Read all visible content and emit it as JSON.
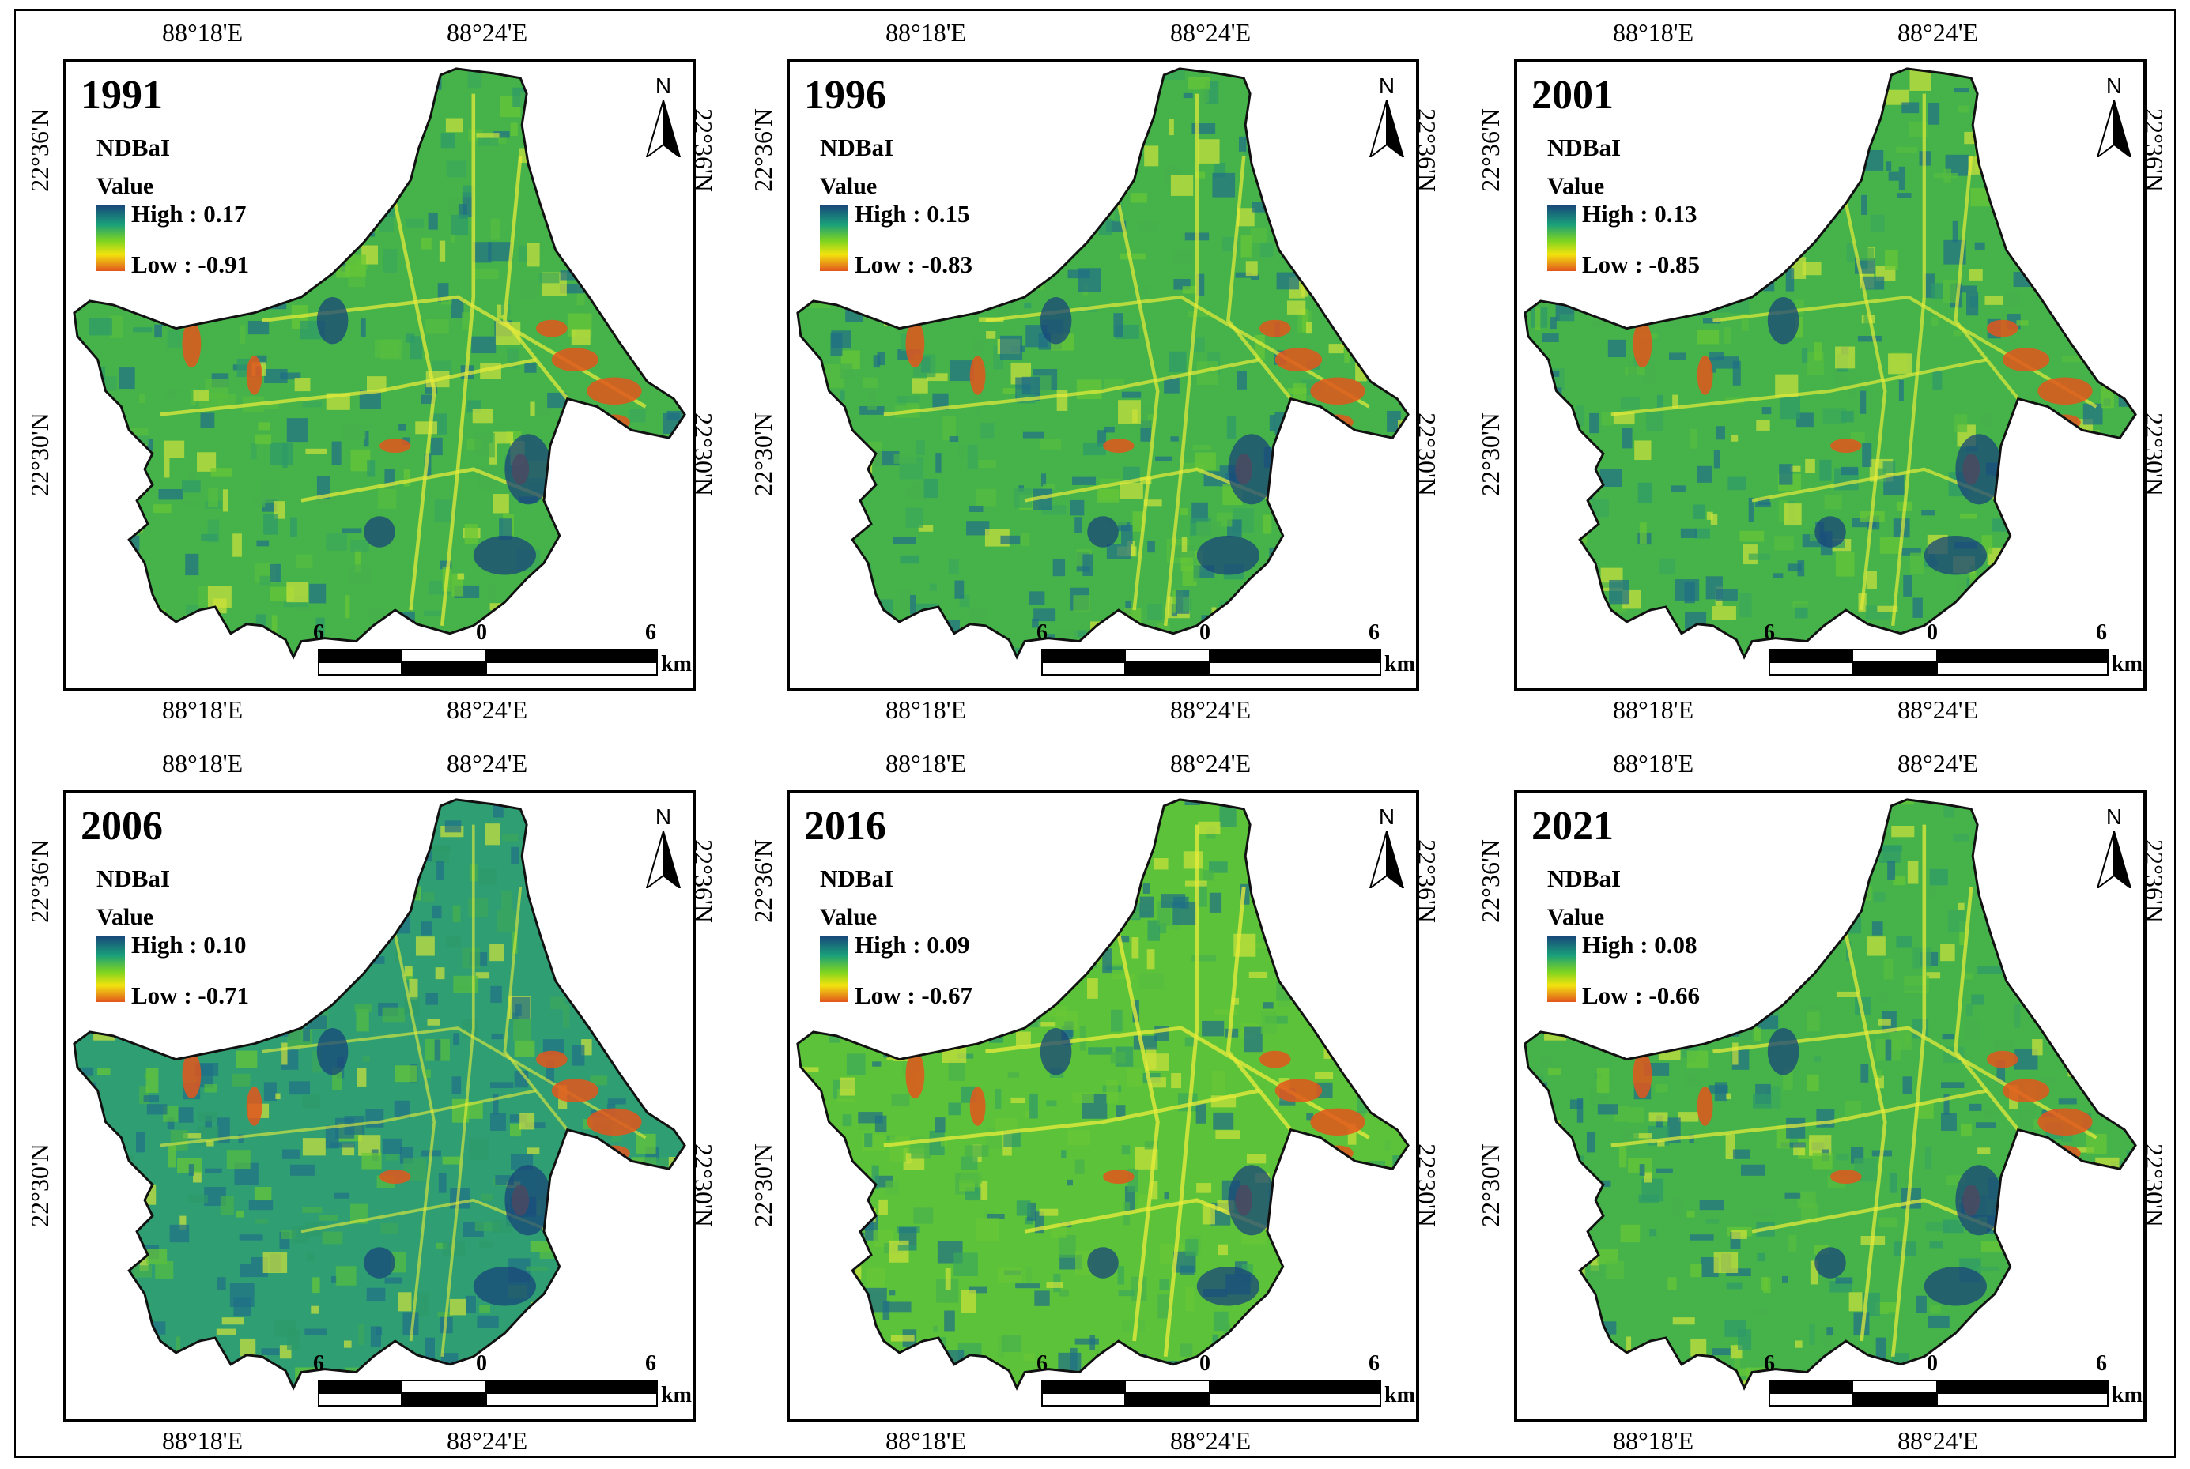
{
  "colors": {
    "high": "#18457a",
    "mid_high": "#1aa07a",
    "mid": "#7fd420",
    "mid_low": "#f2e30f",
    "low": "#e2561c",
    "base_green": "#45b34a"
  },
  "panels": [
    {
      "year": "1991",
      "legend_title": "NDBaI",
      "value_label": "Value",
      "high": "High : 0.17",
      "low": "Low : -0.91",
      "tone": 0.55
    },
    {
      "year": "1996",
      "legend_title": "NDBaI",
      "value_label": "Value",
      "high": "High : 0.15",
      "low": "Low : -0.83",
      "tone": 0.5
    },
    {
      "year": "2001",
      "legend_title": "NDBaI",
      "value_label": "Value",
      "high": "High : 0.13",
      "low": "Low : -0.85",
      "tone": 0.45
    },
    {
      "year": "2006",
      "legend_title": "NDBaI",
      "value_label": "Value",
      "high": "High : 0.10",
      "low": "Low : -0.71",
      "tone": 0.25
    },
    {
      "year": "2016",
      "legend_title": "NDBaI",
      "value_label": "Value",
      "high": "High : 0.09",
      "low": "Low : -0.67",
      "tone": 0.65
    },
    {
      "year": "2021",
      "legend_title": "NDBaI",
      "value_label": "Value",
      "high": "High : 0.08",
      "low": "Low : -0.66",
      "tone": 0.55
    }
  ],
  "common": {
    "north_label": "N",
    "scale_labels": [
      "6",
      "0",
      "6"
    ],
    "scale_unit": "km",
    "lon_labels": [
      "88°18'E",
      "88°24'E"
    ],
    "lat_labels": [
      "22°36'N",
      "22°30'N"
    ]
  }
}
